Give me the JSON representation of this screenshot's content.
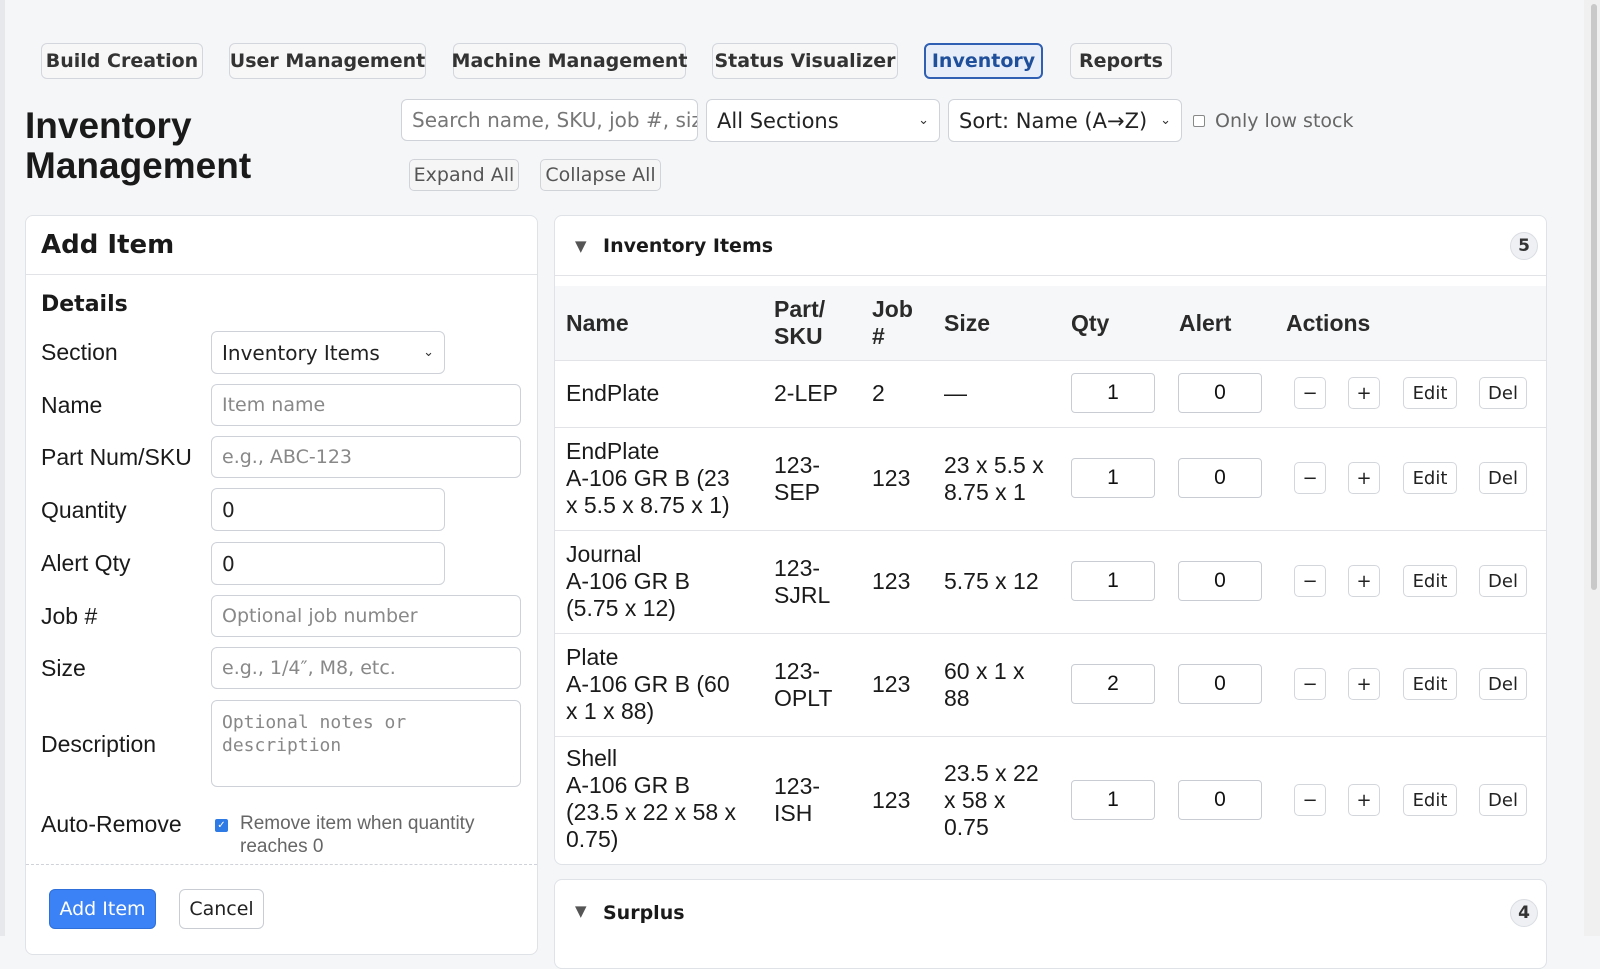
{
  "nav": {
    "tabs": [
      {
        "label": "Build Creation",
        "active": false
      },
      {
        "label": "User Management",
        "active": false
      },
      {
        "label": "Machine Management",
        "active": false
      },
      {
        "label": "Status Visualizer",
        "active": false
      },
      {
        "label": "Inventory",
        "active": true
      },
      {
        "label": "Reports",
        "active": false
      }
    ]
  },
  "page": {
    "title_line1": "Inventory",
    "title_line2": "Management"
  },
  "toolbar": {
    "search_placeholder": "Search name, SKU, job #, size...",
    "section_filter": "All Sections",
    "sort": "Sort: Name (A→Z)",
    "low_stock_label": "Only low stock",
    "low_stock_checked": false,
    "expand_all": "Expand All",
    "collapse_all": "Collapse All"
  },
  "add_item": {
    "heading": "Add Item",
    "subheading": "Details",
    "section_label": "Section",
    "section_value": "Inventory Items",
    "name_label": "Name",
    "name_placeholder": "Item name",
    "sku_label": "Part Num/SKU",
    "sku_placeholder": "e.g., ABC-123",
    "quantity_label": "Quantity",
    "quantity_value": "0",
    "alert_label": "Alert Qty",
    "alert_value": "0",
    "job_label": "Job #",
    "job_placeholder": "Optional job number",
    "size_label": "Size",
    "size_placeholder": "e.g., 1/4″, M8, etc.",
    "description_label": "Description",
    "description_placeholder": "Optional notes or description",
    "auto_remove_label": "Auto-Remove",
    "auto_remove_text": "Remove item when quantity reaches 0",
    "auto_remove_checked": true,
    "submit": "Add Item",
    "cancel": "Cancel"
  },
  "inventory": {
    "section_title": "Inventory Items",
    "count": "5",
    "columns": {
      "name": "Name",
      "sku_line1": "Part/",
      "sku_line2": "SKU",
      "job_line1": "Job",
      "job_line2": "#",
      "size": "Size",
      "qty": "Qty",
      "alert": "Alert",
      "actions": "Actions"
    },
    "action_labels": {
      "minus": "−",
      "plus": "+",
      "edit": "Edit",
      "del": "Del"
    },
    "rows": [
      {
        "name_lines": [
          "EndPlate"
        ],
        "sku_lines": [
          "2-LEP"
        ],
        "job": "2",
        "size_lines": [
          "—"
        ],
        "qty": "1",
        "alert": "0"
      },
      {
        "name_lines": [
          "EndPlate",
          "A-106 GR B (23",
          "x 5.5 x 8.75 x 1)"
        ],
        "sku_lines": [
          "123-",
          "SEP"
        ],
        "job": "123",
        "size_lines": [
          "23 x 5.5 x",
          "8.75 x 1"
        ],
        "qty": "1",
        "alert": "0"
      },
      {
        "name_lines": [
          "Journal",
          "A-106 GR B",
          "(5.75 x 12)"
        ],
        "sku_lines": [
          "123-",
          "SJRL"
        ],
        "job": "123",
        "size_lines": [
          "5.75 x 12"
        ],
        "qty": "1",
        "alert": "0"
      },
      {
        "name_lines": [
          "Plate",
          "A-106 GR B (60",
          "x 1 x 88)"
        ],
        "sku_lines": [
          "123-",
          "OPLT"
        ],
        "job": "123",
        "size_lines": [
          "60 x 1 x",
          "88"
        ],
        "qty": "2",
        "alert": "0"
      },
      {
        "name_lines": [
          "Shell",
          "A-106 GR B",
          "(23.5 x 22 x 58 x",
          "0.75)"
        ],
        "sku_lines": [
          "123-",
          "ISH"
        ],
        "job": "123",
        "size_lines": [
          "23.5 x 22",
          "x 58 x",
          "0.75"
        ],
        "qty": "1",
        "alert": "0"
      }
    ]
  },
  "surplus": {
    "section_title": "Surplus",
    "count": "4"
  }
}
